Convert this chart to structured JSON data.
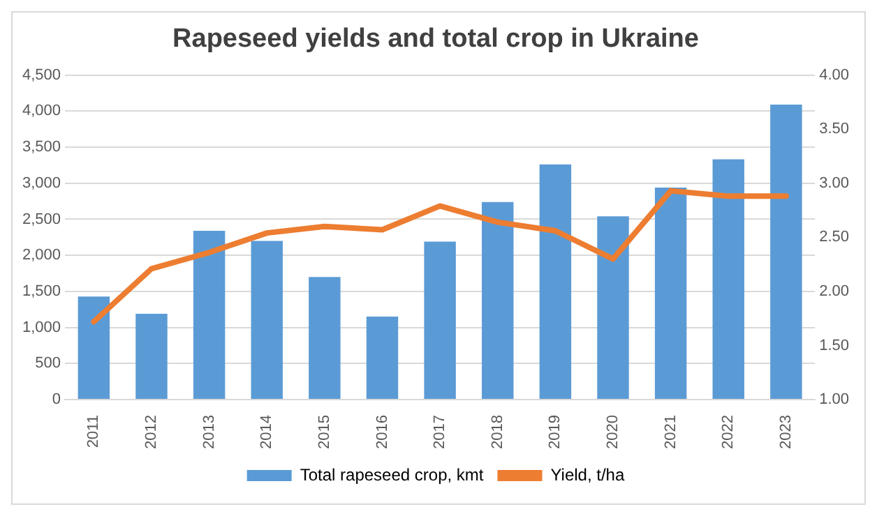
{
  "chart_data": {
    "type": "bar",
    "title": "Rapeseed yields and total crop in Ukraine",
    "categories": [
      "2011",
      "2012",
      "2013",
      "2014",
      "2015",
      "2016",
      "2017",
      "2018",
      "2019",
      "2020",
      "2021",
      "2022",
      "2023"
    ],
    "series": [
      {
        "name": "Total rapeseed crop, kmt",
        "color": "#5b9bd5",
        "values": [
          1430,
          1190,
          2340,
          2200,
          1700,
          1150,
          2190,
          2740,
          3260,
          2540,
          2940,
          3330,
          4090
        ]
      },
      {
        "name": "Yield, t/ha",
        "type": "line",
        "axis": "y2",
        "color": "#ed7d31",
        "marker": "none",
        "values": [
          1.72,
          2.21,
          2.36,
          2.54,
          2.6,
          2.57,
          2.79,
          2.64,
          2.56,
          2.3,
          2.93,
          2.88,
          2.88
        ]
      }
    ],
    "ylim": [
      0,
      4500
    ],
    "yticks": [
      {
        "value": 0,
        "label": "0"
      },
      {
        "value": 500,
        "label": "500"
      },
      {
        "value": 1000,
        "label": "1,000"
      },
      {
        "value": 1500,
        "label": "1,500"
      },
      {
        "value": 2000,
        "label": "2,000"
      },
      {
        "value": 2500,
        "label": "2,500"
      },
      {
        "value": 3000,
        "label": "3,000"
      },
      {
        "value": 3500,
        "label": "3,500"
      },
      {
        "value": 4000,
        "label": "4,000"
      },
      {
        "value": 4500,
        "label": "4,500"
      }
    ],
    "y2lim": [
      1,
      4
    ],
    "y2ticks": [
      {
        "value": 1,
        "label": "1.00"
      },
      {
        "value": 1.5,
        "label": "1.50"
      },
      {
        "value": 2,
        "label": "2.00"
      },
      {
        "value": 2.5,
        "label": "2.50"
      },
      {
        "value": 3,
        "label": "3.00"
      },
      {
        "value": 3.5,
        "label": "3.50"
      },
      {
        "value": 4,
        "label": "4.00"
      }
    ],
    "grid": "y",
    "legend": "bottom"
  }
}
